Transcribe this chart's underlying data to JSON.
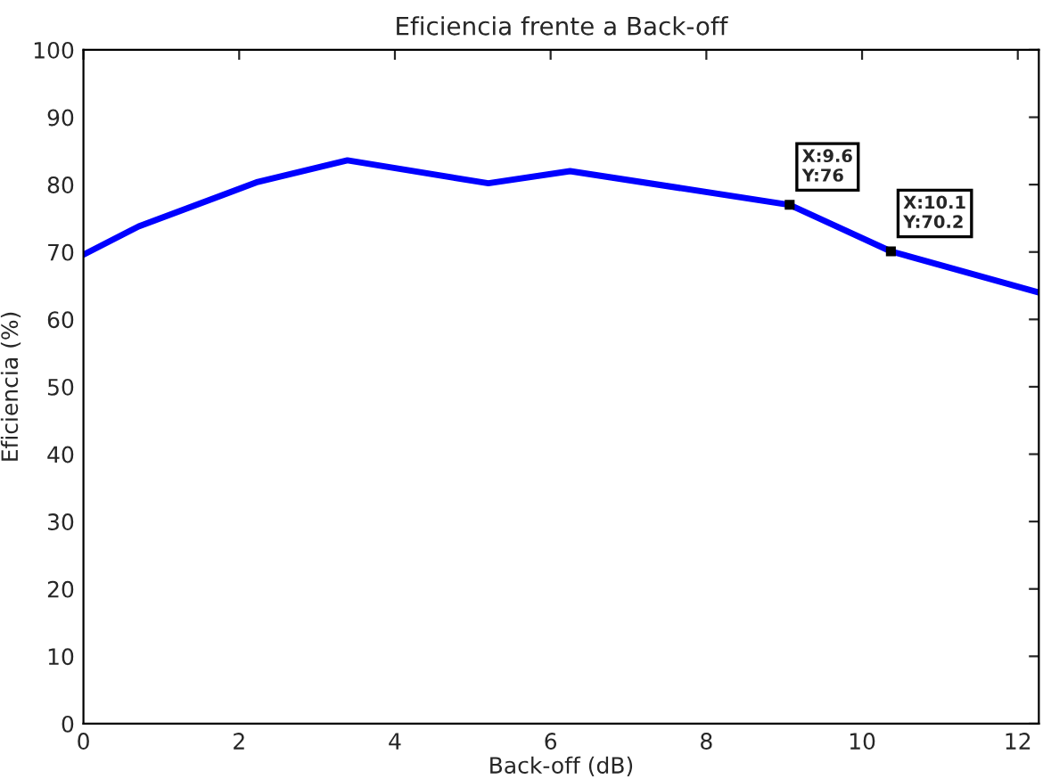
{
  "chart_data": {
    "type": "line",
    "title": "Eficiencia frente a Back-off",
    "xlabel": "Back-off (dB)",
    "ylabel": "Eficiencia (%)",
    "series": [
      {
        "color": "#0000ff",
        "x": [
          0,
          0.71,
          2.24,
          3.39,
          5.2,
          6.25,
          9.07,
          10.37,
          12.27
        ],
        "values": [
          69.6,
          73.8,
          80.4,
          83.6,
          80.2,
          82.0,
          77.0,
          70.1,
          64.0
        ]
      }
    ],
    "annotations": [
      {
        "text": "X:9.6\nY:76",
        "x": 9.07,
        "y": 77.0
      },
      {
        "text": "X:10.1\nY:70.2",
        "x": 10.37,
        "y": 70.1
      }
    ],
    "xlim": [
      0,
      12.27
    ],
    "xticks": [
      0,
      2,
      4,
      6,
      8,
      10,
      12
    ],
    "ylim": [
      0,
      100
    ],
    "yticks": [
      0,
      10,
      20,
      30,
      40,
      50,
      60,
      70,
      80,
      90,
      100
    ],
    "grid": false,
    "legend": false,
    "marker": "none",
    "line_style": "solid"
  }
}
